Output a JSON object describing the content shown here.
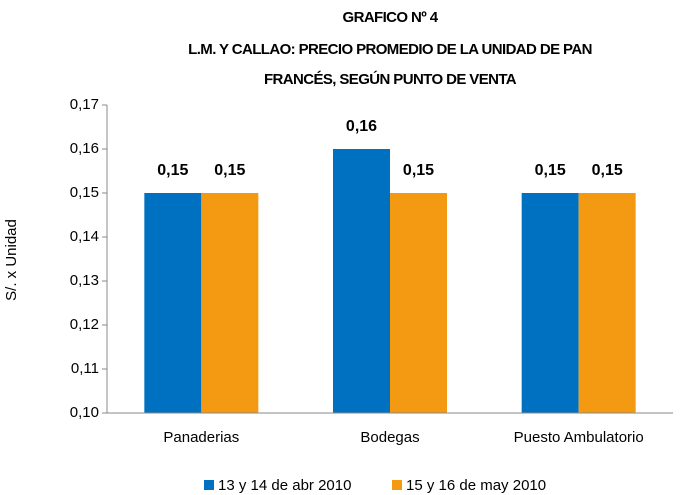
{
  "chart_data": {
    "type": "bar",
    "title": [
      "GRAFICO Nº 4",
      "L.M. Y CALLAO: PRECIO PROMEDIO DE LA UNIDAD DE PAN",
      "FRANCÉS, SEGÚN PUNTO DE VENTA"
    ],
    "y_label": "S/. x Unidad",
    "categories": [
      "Panaderias",
      "Bodegas",
      "Puesto Ambulatorio"
    ],
    "series": [
      {
        "name": "13 y 14 de abr 2010",
        "color": "#0070c0",
        "values": [
          0.15,
          0.16,
          0.15
        ],
        "value_labels": [
          "0,15",
          "0,16",
          "0,15"
        ]
      },
      {
        "name": "15 y 16 de may 2010",
        "color": "#f39a12",
        "values": [
          0.15,
          0.15,
          0.15
        ],
        "value_labels": [
          "0,15",
          "0,15",
          "0,15"
        ]
      }
    ],
    "ylim": [
      0.1,
      0.17
    ],
    "yticks": [
      {
        "value": 0.1,
        "label": "0,10"
      },
      {
        "value": 0.11,
        "label": "0,11"
      },
      {
        "value": 0.12,
        "label": "0,12"
      },
      {
        "value": 0.13,
        "label": "0,13"
      },
      {
        "value": 0.14,
        "label": "0,14"
      },
      {
        "value": 0.15,
        "label": "0,15"
      },
      {
        "value": 0.16,
        "label": "0,16"
      },
      {
        "value": 0.17,
        "label": "0,17"
      }
    ],
    "legend": "bottom"
  }
}
